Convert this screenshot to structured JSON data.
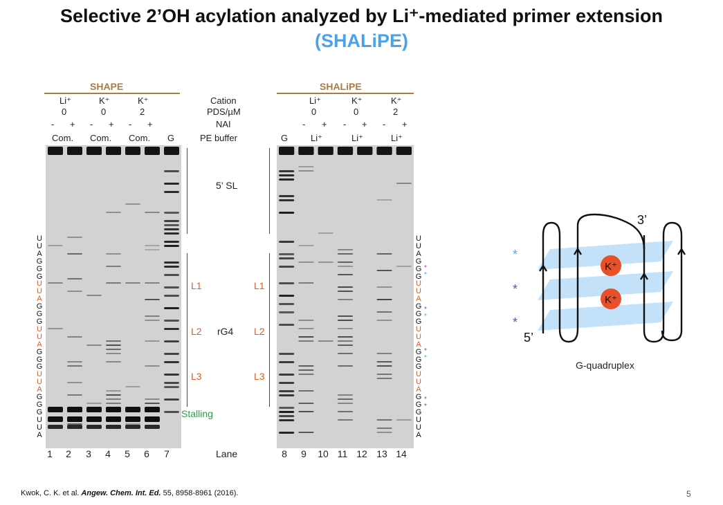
{
  "slide": {
    "title_line1": "Selective 2’OH acylation analyzed by Li⁺-mediated primer extension",
    "title_line2": "(SHALiPE)",
    "citation_pre": "Kwok, C. K. et al. ",
    "citation_journal": "Angew. Chem. Int. Ed.",
    "citation_post": " 55, 8958-8961 (2016).",
    "page_number": "5"
  },
  "gel": {
    "shape_header": "SHAPE",
    "shalipe_header": "SHALiPE",
    "row_labels": [
      "Cation",
      "PDS/µM",
      "NAI",
      "PE buffer"
    ],
    "left_cations": [
      "Li⁺",
      "K⁺",
      "K⁺"
    ],
    "left_pds": [
      "0",
      "0",
      "2"
    ],
    "left_buffer": [
      "Com.",
      "Com.",
      "Com.",
      "G"
    ],
    "right_cations": [
      "Li⁺",
      "K⁺",
      "K⁺"
    ],
    "right_pds": [
      "0",
      "0",
      "2"
    ],
    "right_buffer": [
      "G",
      "Li⁺",
      "Li⁺",
      "Li⁺"
    ],
    "nai_minus": "-",
    "nai_plus": "+",
    "regions": {
      "sl": "5’ SL",
      "rg4": "rG4",
      "l1": "L1",
      "l2": "L2",
      "l3": "L3",
      "stalling": "Stalling"
    },
    "lane_label": "Lane",
    "lanes": [
      "1",
      "2",
      "3",
      "4",
      "5",
      "6",
      "7",
      "8",
      "9",
      "10",
      "11",
      "12",
      "13",
      "14"
    ],
    "sequence": [
      "U",
      "U",
      "A",
      "G",
      "G",
      "G",
      "U",
      "U",
      "A",
      "G",
      "G",
      "G",
      "U",
      "U",
      "A",
      "G",
      "G",
      "G",
      "U",
      "U",
      "A",
      "G",
      "G",
      "G",
      "U",
      "U",
      "A"
    ],
    "sequence_colors": [
      "#111",
      "#111",
      "#111",
      "#111",
      "#111",
      "#111",
      "#d4602a",
      "#d4602a",
      "#d4602a",
      "#111",
      "#111",
      "#111",
      "#d4602a",
      "#d4602a",
      "#d4602a",
      "#111",
      "#111",
      "#111",
      "#d4602a",
      "#d4602a",
      "#d4602a",
      "#111",
      "#111",
      "#111",
      "#111",
      "#111",
      "#111"
    ]
  },
  "diagram": {
    "label_3prime": "3’",
    "label_5prime": "5’",
    "ion": "K⁺",
    "caption": "G-quadruplex",
    "star": "*"
  },
  "colors": {
    "title_blue": "#4aa3e8",
    "shape_brown": "#b07a3c",
    "loop_orange": "#d4602a",
    "stalling_green": "#2e9e4a",
    "plane_blue": "#b9dcf7",
    "ion_red": "#e8502a",
    "star_blue": "#4ab0e8",
    "star_purple": "#7a4aa8"
  }
}
